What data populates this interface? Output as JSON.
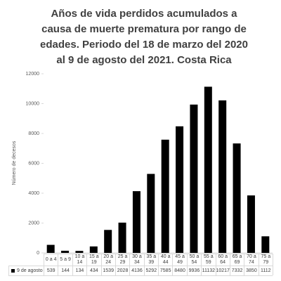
{
  "chart_data": {
    "type": "bar",
    "title": [
      "Años de vida perdidos acumulados a",
      "causa de muerte prematura por rango de",
      "edades. Periodo del 18 de marzo del 2020",
      "al 9 de agosto del 2021. Costa Rica"
    ],
    "y_label": "Número de decesos",
    "categories": [
      "0 a 4",
      "5 a 9",
      "10 a 14",
      "15 a 19",
      "20 a 24",
      "25 a 29",
      "30 a 34",
      "35 a 39",
      "40 a 44",
      "45 a 49",
      "50 a 54",
      "55 a 59",
      "60 a 64",
      "65 a 69",
      "70 a 74",
      "75 a 79"
    ],
    "series": [
      {
        "name": "9 de agosto",
        "color": "#000000",
        "values": [
          539,
          144,
          134,
          434,
          1539,
          2028,
          4136,
          5292,
          7585,
          8480,
          9936,
          11132,
          10217,
          7332,
          3850,
          1112
        ]
      }
    ],
    "ylim": [
      0,
      12000
    ],
    "yticks": [
      0,
      2000,
      4000,
      6000,
      8000,
      10000,
      12000
    ],
    "grid": false
  }
}
